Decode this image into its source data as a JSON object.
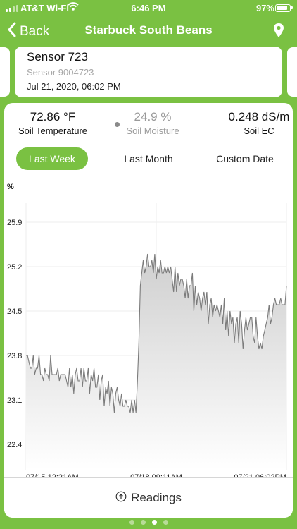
{
  "status_bar": {
    "carrier": "AT&T Wi-Fi",
    "time": "6:46 PM",
    "battery": "97%"
  },
  "nav": {
    "back_label": "Back",
    "title": "Starbuck South Beans"
  },
  "sensor": {
    "name": "Sensor 723",
    "id": "Sensor 9004723",
    "timestamp": "Jul 21, 2020, 06:02 PM"
  },
  "stats": [
    {
      "value": "72.86 °F",
      "label": "Soil Temperature",
      "muted": false
    },
    {
      "value": "24.9 %",
      "label": "Soil Moisture",
      "muted": true
    },
    {
      "value": "0.248 dS/m",
      "label": "Soil EC",
      "muted": false
    }
  ],
  "range_tabs": [
    {
      "label": "Last Week",
      "active": true
    },
    {
      "label": "Last Month",
      "active": false
    },
    {
      "label": "Custom Date",
      "active": false
    }
  ],
  "footer": {
    "readings_label": "Readings"
  },
  "pager": {
    "count": 4,
    "active_index": 2
  },
  "colors": {
    "accent": "#7ac142",
    "line": "#7b7b7b",
    "fill": "#d7d7d7"
  },
  "icons": [
    "chevron-left-icon",
    "map-pin-icon",
    "info-circle-icon",
    "wifi-icon",
    "battery-icon"
  ],
  "chart_data": {
    "type": "area",
    "ylabel": "%",
    "yticks": [
      22.4,
      23.1,
      23.8,
      24.5,
      25.2,
      25.9
    ],
    "ylim": [
      22.0,
      26.2
    ],
    "xticks": [
      "07/15 12:21AM",
      "07/18 09:11AM",
      "07/21 06:02PM"
    ],
    "grid": true,
    "series": [
      {
        "values": [
          23.8,
          23.8,
          23.7,
          23.6,
          23.6,
          23.8,
          23.5,
          23.6,
          23.6,
          23.8,
          23.5,
          23.5,
          23.4,
          23.6,
          23.5,
          23.5,
          23.4,
          23.8,
          23.5,
          23.5,
          23.5,
          23.5,
          23.6,
          23.4,
          23.5,
          23.5,
          23.5,
          23.5,
          23.4,
          23.3,
          23.6,
          23.3,
          23.5,
          23.2,
          23.5,
          23.6,
          23.4,
          23.4,
          23.6,
          23.3,
          23.6,
          23.4,
          23.4,
          23.6,
          23.2,
          23.5,
          23.4,
          23.6,
          23.3,
          23.3,
          23.5,
          23.1,
          23.4,
          23.5,
          23.0,
          23.3,
          23.2,
          23.4,
          23.0,
          23.3,
          23.2,
          22.9,
          23.2,
          23.3,
          23.1,
          23.0,
          23.2,
          23.0,
          23.0,
          23.1,
          23.0,
          23.0,
          22.9,
          23.1,
          22.9,
          23.1,
          22.9,
          23.4,
          24.0,
          24.9,
          25.1,
          25.3,
          25.1,
          25.2,
          25.4,
          25.2,
          25.2,
          25.3,
          25.1,
          25.4,
          25.0,
          25.2,
          25.1,
          25.3,
          25.1,
          25.1,
          25.2,
          25.1,
          25.2,
          25.1,
          25.2,
          25.0,
          24.8,
          25.2,
          24.8,
          25.1,
          24.9,
          25.0,
          25.0,
          24.9,
          24.7,
          25.0,
          24.7,
          24.9,
          24.9,
          25.1,
          24.5,
          24.9,
          24.6,
          24.8,
          24.7,
          24.5,
          24.7,
          24.8,
          24.6,
          24.8,
          24.3,
          24.6,
          24.7,
          24.4,
          24.6,
          24.5,
          24.6,
          24.5,
          24.4,
          24.6,
          24.3,
          24.7,
          24.2,
          24.5,
          24.1,
          24.5,
          24.3,
          24.4,
          24.0,
          24.3,
          24.4,
          24.0,
          24.5,
          24.3,
          23.9,
          24.2,
          24.4,
          24.2,
          24.3,
          24.4,
          24.4,
          24.1,
          24.0,
          24.4,
          24.1,
          23.9,
          24.0,
          23.9,
          24.1,
          24.2,
          24.3,
          24.4,
          24.6,
          24.3,
          24.4,
          24.6,
          24.7,
          24.6,
          24.6,
          24.6,
          24.7,
          24.6,
          24.6,
          24.6,
          24.9
        ]
      }
    ]
  }
}
